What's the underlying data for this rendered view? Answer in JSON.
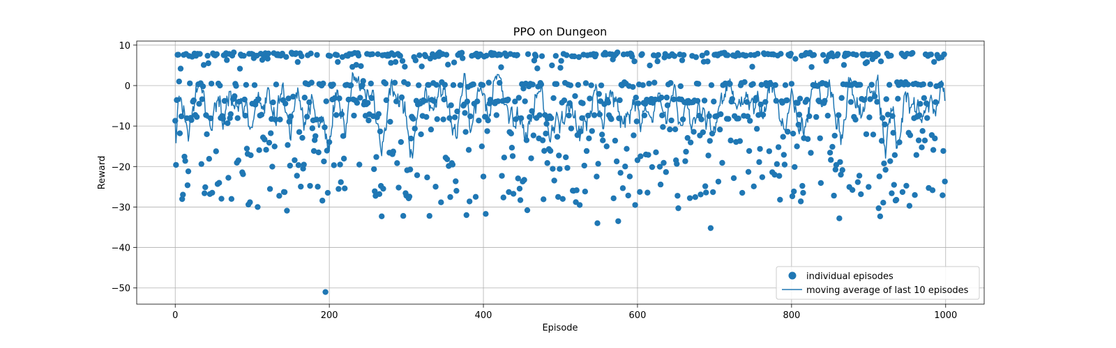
{
  "chart_data": {
    "type": "scatter",
    "title": "PPO on Dungeon",
    "xlabel": "Episode",
    "ylabel": "Reward",
    "xlim": [
      -50,
      1050
    ],
    "ylim": [
      -54,
      11
    ],
    "xticks": [
      0,
      200,
      400,
      600,
      800,
      1000
    ],
    "yticks": [
      -50,
      -40,
      -30,
      -20,
      -10,
      0,
      10
    ],
    "grid": true,
    "legend_position": "lower-right",
    "colors": {
      "series": "#1f77b4",
      "grid": "#b0b0b0"
    },
    "series": [
      {
        "name": "individual episodes",
        "kind": "scatter",
        "seed": 7,
        "count": 1000,
        "outliers": [
          [
            195,
            -51
          ],
          [
            265,
            -36
          ],
          [
            695,
            -35.2
          ],
          [
            548,
            -34
          ],
          [
            575,
            -33.5
          ],
          [
            862,
            -32.8
          ],
          [
            268,
            -32.3
          ],
          [
            296,
            -32.2
          ],
          [
            330,
            -32.2
          ],
          [
            378,
            -32
          ],
          [
            403,
            -31.7
          ],
          [
            915,
            -32.3
          ],
          [
            913,
            -30.3
          ],
          [
            145,
            -30.9
          ],
          [
            457,
            -30.8
          ],
          [
            653,
            -30.3
          ],
          [
            107,
            -30
          ],
          [
            95,
            -29.4
          ],
          [
            525,
            -29.5
          ],
          [
            597,
            -29.5
          ],
          [
            953,
            -29.7
          ],
          [
            520,
            -28.8
          ],
          [
            785,
            -28.2
          ],
          [
            448,
            -28.3
          ],
          [
            497,
            -27.5
          ],
          [
            73,
            -28
          ],
          [
            668,
            -27.8
          ],
          [
            503,
            -28
          ],
          [
            300,
            -27.2
          ],
          [
            290,
            -25.2
          ],
          [
            38,
            -26.6
          ],
          [
            45,
            -26.8
          ],
          [
            736,
            -26.5
          ],
          [
            815,
            -26.5
          ],
          [
            930,
            -26.6
          ],
          [
            198,
            -26.5
          ],
          [
            265,
            -26.8
          ],
          [
            365,
            -26
          ],
          [
            433,
            -26.3
          ],
          [
            517,
            -26
          ]
        ]
      },
      {
        "name": "moving average of last 10 episodes",
        "kind": "line",
        "window": 10
      }
    ]
  }
}
